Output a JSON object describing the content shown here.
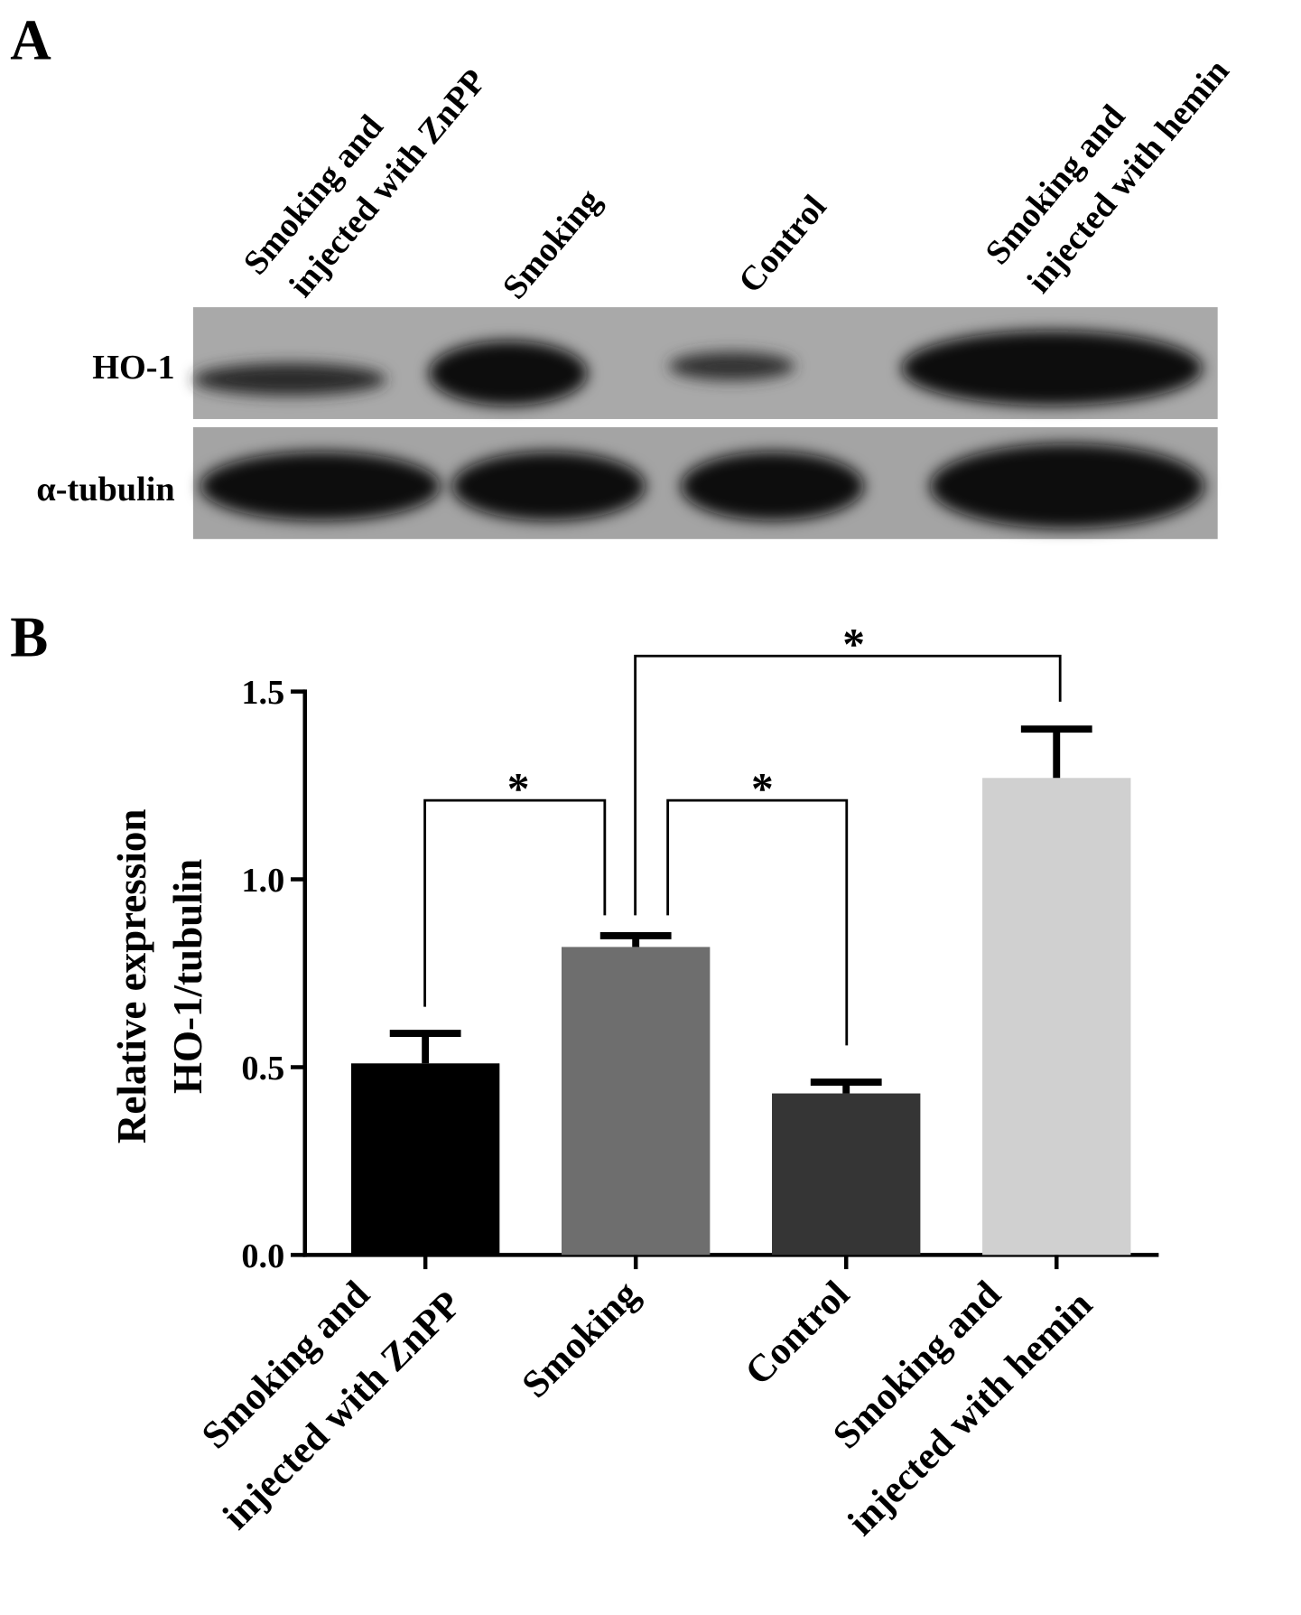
{
  "panel_a": {
    "label": "A",
    "lanes": [
      [
        "Smoking and",
        "injected with ZnPP"
      ],
      [
        "Smoking"
      ],
      [
        "Control"
      ],
      [
        "Smoking and",
        "injected with hemin"
      ]
    ],
    "rows": [
      "HO-1",
      "α-tubulin"
    ]
  },
  "chart_data": {
    "type": "bar",
    "panel_label": "B",
    "ylabel": [
      "Relative expression",
      "HO-1/tubulin"
    ],
    "categories": [
      [
        "Smoking and",
        "injected with ZnPP"
      ],
      [
        "Smoking"
      ],
      [
        "Control"
      ],
      [
        "Smoking and",
        "injected with hemin"
      ]
    ],
    "values": [
      0.51,
      0.82,
      0.43,
      1.27
    ],
    "errors": [
      0.08,
      0.03,
      0.03,
      0.13
    ],
    "colors": [
      "#000000",
      "#6e6e6e",
      "#353535",
      "#d0d0d0"
    ],
    "ylim": [
      0,
      1.5
    ],
    "yticks": [
      {
        "value": 0,
        "label": "0.0"
      },
      0.5,
      {
        "value": 1,
        "label": "1.0"
      },
      1.5
    ],
    "annotations": [
      "*",
      "*",
      "*"
    ],
    "grid": false
  }
}
